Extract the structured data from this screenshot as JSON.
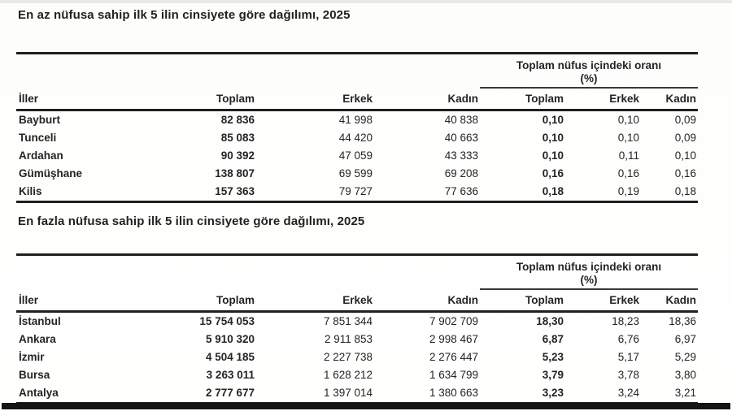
{
  "page": {
    "background": "#fdfdfc",
    "bottom_bar_color": "#141414",
    "text_color": "#1c1c1c"
  },
  "tables": [
    {
      "title": "En az nüfusa sahip ilk 5 ilin cinsiyete göre dağılımı, 2025",
      "group_header": "Toplam nüfus içindeki oranı",
      "group_header_unit": "(%)",
      "columns": [
        "İller",
        "Toplam",
        "Erkek",
        "Kadın",
        "Toplam",
        "Erkek",
        "Kadın"
      ],
      "rows": [
        [
          "Bayburt",
          "82 836",
          "41 998",
          "40 838",
          "0,10",
          "0,10",
          "0,09"
        ],
        [
          "Tunceli",
          "85 083",
          "44 420",
          "40 663",
          "0,10",
          "0,10",
          "0,09"
        ],
        [
          "Ardahan",
          "90 392",
          "47 059",
          "43 333",
          "0,10",
          "0,11",
          "0,10"
        ],
        [
          "Gümüşhane",
          "138 807",
          "69 599",
          "69 208",
          "0,16",
          "0,16",
          "0,16"
        ],
        [
          "Kilis",
          "157 363",
          "79 727",
          "77 636",
          "0,18",
          "0,19",
          "0,18"
        ]
      ]
    },
    {
      "title": "En fazla nüfusa sahip ilk 5 ilin cinsiyete göre dağılımı, 2025",
      "group_header": "Toplam nüfus içindeki oranı",
      "group_header_unit": "(%)",
      "columns": [
        "İller",
        "Toplam",
        "Erkek",
        "Kadın",
        "Toplam",
        "Erkek",
        "Kadın"
      ],
      "rows": [
        [
          "İstanbul",
          "15 754 053",
          "7 851 344",
          "7 902 709",
          "18,30",
          "18,23",
          "18,36"
        ],
        [
          "Ankara",
          "5 910 320",
          "2 911 853",
          "2 998 467",
          "6,87",
          "6,76",
          "6,97"
        ],
        [
          "İzmir",
          "4 504 185",
          "2 227 738",
          "2 276 447",
          "5,23",
          "5,17",
          "5,29"
        ],
        [
          "Bursa",
          "3 263 011",
          "1 628 212",
          "1 634 799",
          "3,79",
          "3,78",
          "3,80"
        ],
        [
          "Antalya",
          "2 777 677",
          "1 397 014",
          "1 380 663",
          "3,23",
          "3,24",
          "3,21"
        ]
      ]
    }
  ]
}
